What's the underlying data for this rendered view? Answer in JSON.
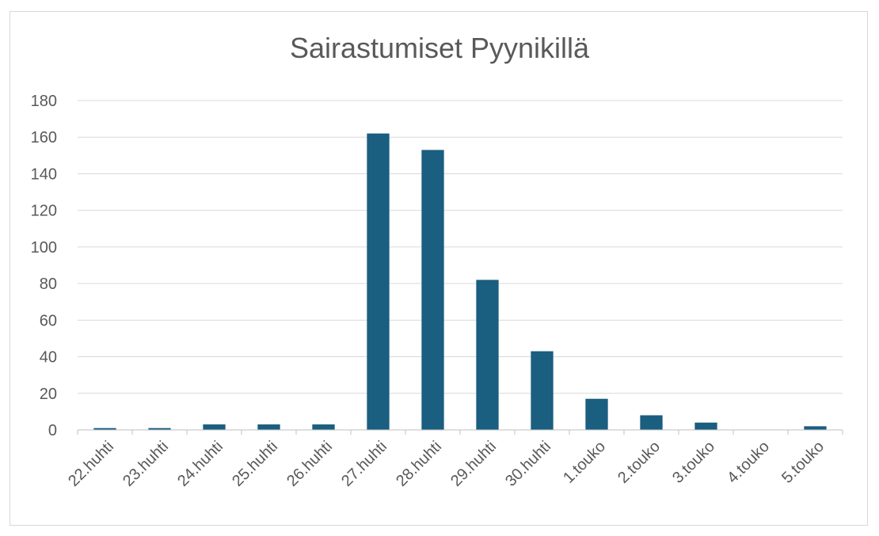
{
  "chart_data": {
    "type": "bar",
    "title": "Sairastumiset Pyynikillä",
    "categories": [
      "22.huhti",
      "23.huhti",
      "24.huhti",
      "25.huhti",
      "26.huhti",
      "27.huhti",
      "28.huhti",
      "29.huhti",
      "30.huhti",
      "1.touko",
      "2.touko",
      "3.touko",
      "4.touko",
      "5.touko"
    ],
    "values": [
      1,
      1,
      3,
      3,
      3,
      162,
      153,
      82,
      43,
      17,
      8,
      4,
      0,
      2
    ],
    "ylim": [
      0,
      180
    ],
    "yticks": [
      0,
      20,
      40,
      60,
      80,
      100,
      120,
      140,
      160,
      180
    ],
    "grid": true,
    "legend": "none",
    "bar_color": "#1a5e80",
    "xlabel": "",
    "ylabel": ""
  }
}
